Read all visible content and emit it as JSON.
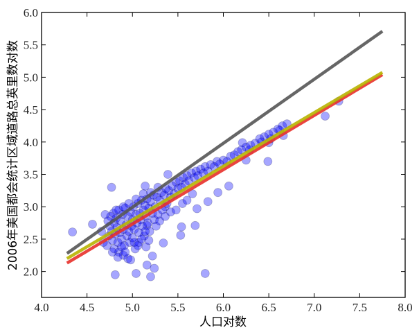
{
  "chart_data": {
    "type": "scatter",
    "title": "",
    "xlabel": "人口对数",
    "ylabel": "2006年美国都会统计区域道路总英里数对数",
    "xlim": [
      4.0,
      8.0
    ],
    "ylim": [
      1.6,
      6.0
    ],
    "xticks": [
      "4.0",
      "4.5",
      "5.0",
      "5.5",
      "6.0",
      "6.5",
      "7.0",
      "7.5",
      "8.0"
    ],
    "yticks": [
      "2.0",
      "2.5",
      "3.0",
      "3.5",
      "4.0",
      "4.5",
      "5.0",
      "5.5",
      "6.0"
    ],
    "grid": false,
    "colors": {
      "points": "#0000ff",
      "line_gray": "#555555",
      "line_yellow": "#b8b400",
      "line_red": "#e8302a"
    },
    "lines": [
      {
        "color": "#555555",
        "x": [
          4.28,
          7.75
        ],
        "y": [
          2.28,
          5.71
        ]
      },
      {
        "color": "#e8302a",
        "x": [
          4.28,
          7.75
        ],
        "y": [
          2.13,
          5.04
        ]
      },
      {
        "color": "#b8b400",
        "x": [
          4.28,
          7.75
        ],
        "y": [
          2.2,
          5.075
        ]
      }
    ],
    "points": [
      [
        4.81,
        1.95
      ],
      [
        5.04,
        1.97
      ],
      [
        5.2,
        1.92
      ],
      [
        5.8,
        1.97
      ],
      [
        5.16,
        2.1
      ],
      [
        5.24,
        2.05
      ],
      [
        5.22,
        2.24
      ],
      [
        5.07,
        2.45
      ],
      [
        5.15,
        2.38
      ],
      [
        5.34,
        2.44
      ],
      [
        5.53,
        2.56
      ],
      [
        5.16,
        2.71
      ],
      [
        5.36,
        3.0
      ],
      [
        5.69,
        2.71
      ],
      [
        5.54,
        2.69
      ],
      [
        5.14,
        3.32
      ],
      [
        4.77,
        3.3
      ],
      [
        4.56,
        2.73
      ],
      [
        4.34,
        2.61
      ],
      [
        5.39,
        3.5
      ],
      [
        5.83,
        3.08
      ],
      [
        5.71,
        2.97
      ],
      [
        5.94,
        3.22
      ],
      [
        6.06,
        3.32
      ],
      [
        6.25,
        3.72
      ],
      [
        6.49,
        3.7
      ],
      [
        6.5,
        3.99
      ],
      [
        7.12,
        4.4
      ],
      [
        7.27,
        4.63
      ],
      [
        6.66,
        4.1
      ],
      [
        6.29,
        3.88
      ],
      [
        6.21,
        3.99
      ],
      [
        4.72,
        2.4
      ],
      [
        4.74,
        2.55
      ],
      [
        4.75,
        2.7
      ],
      [
        4.76,
        2.85
      ],
      [
        4.77,
        2.62
      ],
      [
        4.78,
        2.48
      ],
      [
        4.79,
        2.9
      ],
      [
        4.8,
        2.75
      ],
      [
        4.8,
        2.35
      ],
      [
        4.81,
        2.58
      ],
      [
        4.82,
        2.82
      ],
      [
        4.83,
        2.68
      ],
      [
        4.84,
        2.45
      ],
      [
        4.85,
        2.95
      ],
      [
        4.85,
        2.3
      ],
      [
        4.86,
        2.6
      ],
      [
        4.87,
        2.78
      ],
      [
        4.88,
        2.5
      ],
      [
        4.89,
        2.88
      ],
      [
        4.9,
        2.65
      ],
      [
        4.9,
        2.25
      ],
      [
        4.91,
        2.4
      ],
      [
        4.92,
        2.98
      ],
      [
        4.93,
        2.72
      ],
      [
        4.94,
        2.55
      ],
      [
        4.95,
        2.85
      ],
      [
        4.95,
        2.2
      ],
      [
        4.96,
        2.62
      ],
      [
        4.97,
        2.45
      ],
      [
        4.98,
        2.92
      ],
      [
        4.99,
        2.7
      ],
      [
        5.0,
        2.8
      ],
      [
        5.0,
        2.52
      ],
      [
        5.01,
        3.0
      ],
      [
        5.02,
        2.65
      ],
      [
        5.03,
        2.35
      ],
      [
        5.04,
        2.88
      ],
      [
        5.05,
        2.75
      ],
      [
        5.06,
        3.05
      ],
      [
        5.07,
        2.6
      ],
      [
        5.08,
        2.9
      ],
      [
        5.09,
        2.8
      ],
      [
        5.1,
        3.1
      ],
      [
        5.11,
        2.7
      ],
      [
        5.12,
        2.95
      ],
      [
        5.13,
        2.55
      ],
      [
        5.14,
        3.02
      ],
      [
        5.15,
        2.85
      ],
      [
        5.16,
        3.12
      ],
      [
        5.17,
        2.75
      ],
      [
        5.18,
        2.98
      ],
      [
        5.19,
        2.62
      ],
      [
        5.2,
        3.08
      ],
      [
        5.22,
        2.9
      ],
      [
        5.23,
        3.18
      ],
      [
        5.24,
        2.8
      ],
      [
        5.25,
        3.0
      ],
      [
        5.27,
        3.15
      ],
      [
        5.28,
        2.88
      ],
      [
        5.3,
        3.1
      ],
      [
        5.32,
        3.22
      ],
      [
        5.33,
        2.95
      ],
      [
        5.35,
        3.18
      ],
      [
        5.37,
        3.28
      ],
      [
        5.38,
        3.05
      ],
      [
        5.4,
        3.25
      ],
      [
        5.42,
        3.15
      ],
      [
        5.44,
        3.32
      ],
      [
        5.46,
        3.2
      ],
      [
        5.48,
        3.38
      ],
      [
        5.5,
        3.28
      ],
      [
        5.52,
        3.4
      ],
      [
        5.54,
        3.3
      ],
      [
        5.56,
        3.45
      ],
      [
        5.58,
        3.35
      ],
      [
        5.6,
        3.48
      ],
      [
        5.62,
        3.4
      ],
      [
        5.65,
        3.52
      ],
      [
        5.68,
        3.45
      ],
      [
        5.7,
        3.55
      ],
      [
        5.72,
        3.48
      ],
      [
        5.75,
        3.58
      ],
      [
        5.78,
        3.52
      ],
      [
        5.8,
        3.62
      ],
      [
        5.83,
        3.55
      ],
      [
        5.86,
        3.65
      ],
      [
        5.9,
        3.62
      ],
      [
        5.93,
        3.7
      ],
      [
        5.96,
        3.66
      ],
      [
        6.0,
        3.72
      ],
      [
        6.04,
        3.7
      ],
      [
        6.08,
        3.78
      ],
      [
        6.12,
        3.8
      ],
      [
        6.16,
        3.85
      ],
      [
        6.2,
        3.88
      ],
      [
        6.25,
        3.92
      ],
      [
        6.3,
        3.95
      ],
      [
        6.35,
        3.98
      ],
      [
        6.4,
        4.05
      ],
      [
        6.45,
        4.08
      ],
      [
        6.5,
        4.12
      ],
      [
        6.55,
        4.15
      ],
      [
        6.6,
        4.2
      ],
      [
        6.65,
        4.25
      ],
      [
        6.7,
        4.28
      ],
      [
        6.62,
        4.18
      ],
      [
        6.52,
        4.05
      ],
      [
        6.42,
        4.0
      ],
      [
        4.7,
        2.88
      ],
      [
        4.73,
        2.78
      ],
      [
        4.68,
        2.45
      ],
      [
        4.66,
        2.62
      ],
      [
        4.78,
        2.3
      ],
      [
        4.84,
        2.22
      ],
      [
        4.88,
        2.38
      ],
      [
        4.92,
        2.3
      ],
      [
        4.98,
        2.18
      ],
      [
        5.02,
        2.45
      ],
      [
        5.06,
        2.4
      ],
      [
        5.1,
        2.5
      ],
      [
        5.14,
        2.62
      ],
      [
        5.18,
        2.48
      ],
      [
        5.26,
        2.7
      ],
      [
        5.3,
        2.78
      ],
      [
        5.36,
        2.85
      ],
      [
        5.42,
        2.92
      ],
      [
        5.48,
        2.95
      ],
      [
        5.55,
        3.05
      ],
      [
        5.6,
        3.1
      ],
      [
        5.66,
        3.2
      ],
      [
        4.82,
        2.95
      ],
      [
        4.9,
        3.0
      ],
      [
        4.96,
        3.05
      ],
      [
        5.04,
        3.12
      ],
      [
        5.12,
        3.2
      ],
      [
        5.2,
        3.22
      ],
      [
        5.28,
        3.3
      ]
    ]
  }
}
